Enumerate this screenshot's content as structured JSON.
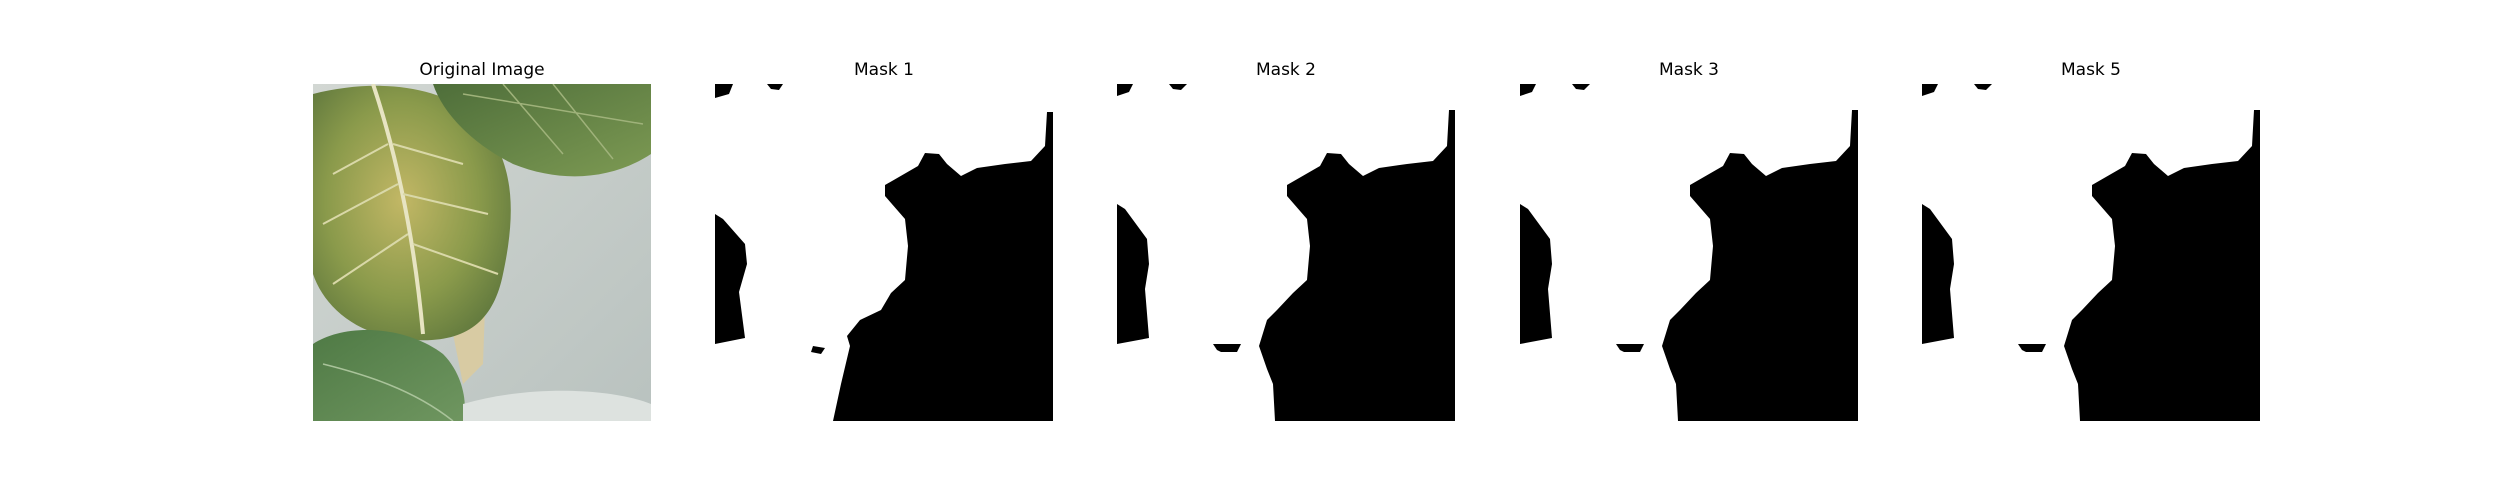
{
  "figure": {
    "panels": [
      {
        "title": "Original Image",
        "kind": "photo",
        "image_label": "leaf-photo"
      },
      {
        "title": "Mask 1",
        "kind": "mask",
        "mask_variant": "mask1"
      },
      {
        "title": "Mask 2",
        "kind": "mask",
        "mask_variant": "mask2"
      },
      {
        "title": "Mask 3",
        "kind": "mask",
        "mask_variant": "mask3"
      },
      {
        "title": "Mask 5",
        "kind": "mask",
        "mask_variant": "mask5"
      }
    ]
  },
  "colors": {
    "mask_foreground": "#ffffff",
    "mask_background": "#000000",
    "wall": "#c4cbc8",
    "leaf_green": "#6f8a3e",
    "leaf_dark": "#3f5f2e",
    "leaf_yellow": "#b8b060",
    "stem": "#d9cda6"
  }
}
